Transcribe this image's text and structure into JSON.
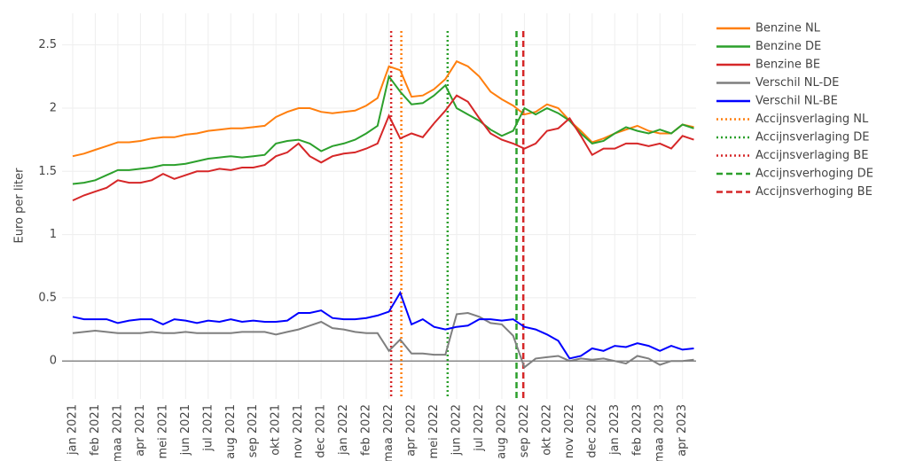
{
  "chart_data": {
    "type": "line",
    "y_label": "Euro per liter",
    "x": [
      0,
      0.5,
      1,
      1.5,
      2,
      2.5,
      3,
      3.5,
      4,
      4.5,
      5,
      5.5,
      6,
      6.5,
      7,
      7.5,
      8,
      8.5,
      9,
      9.5,
      10,
      10.5,
      11,
      11.5,
      12,
      12.5,
      13,
      13.5,
      14,
      14.5,
      15,
      15.5,
      16,
      16.5,
      17,
      17.5,
      18,
      18.5,
      19,
      19.5,
      20,
      20.5,
      21,
      21.5,
      22,
      22.5,
      23,
      23.5,
      24,
      24.5,
      25,
      25.5,
      26,
      26.5,
      27,
      27.5
    ],
    "xlim": [
      -0.47,
      27.6
    ],
    "xticks": [
      {
        "value": 0,
        "label": "jan 2021"
      },
      {
        "value": 1,
        "label": "feb 2021"
      },
      {
        "value": 2,
        "label": "maa 2021"
      },
      {
        "value": 3,
        "label": "apr 2021"
      },
      {
        "value": 4,
        "label": "mei 2021"
      },
      {
        "value": 5,
        "label": "jun 2021"
      },
      {
        "value": 6,
        "label": "jul 2021"
      },
      {
        "value": 7,
        "label": "aug 2021"
      },
      {
        "value": 8,
        "label": "sep 2021"
      },
      {
        "value": 9,
        "label": "okt 2021"
      },
      {
        "value": 10,
        "label": "nov 2021"
      },
      {
        "value": 11,
        "label": "dec 2021"
      },
      {
        "value": 12,
        "label": "jan 2022"
      },
      {
        "value": 13,
        "label": "feb 2022"
      },
      {
        "value": 14,
        "label": "maa 2022"
      },
      {
        "value": 15,
        "label": "apr 2022"
      },
      {
        "value": 16,
        "label": "mei 2022"
      },
      {
        "value": 17,
        "label": "jun 2022"
      },
      {
        "value": 18,
        "label": "jul 2022"
      },
      {
        "value": 19,
        "label": "aug 2022"
      },
      {
        "value": 20,
        "label": "sep 2022"
      },
      {
        "value": 21,
        "label": "okt 2022"
      },
      {
        "value": 22,
        "label": "nov 2022"
      },
      {
        "value": 23,
        "label": "dec 2022"
      },
      {
        "value": 24,
        "label": "jan 2023"
      },
      {
        "value": 25,
        "label": "feb 2023"
      },
      {
        "value": 26,
        "label": "maa 2023"
      },
      {
        "value": 27,
        "label": "apr 2023"
      }
    ],
    "ylim": [
      -0.3,
      2.75
    ],
    "yticks": [
      0,
      0.5,
      1,
      1.5,
      2,
      2.5
    ],
    "grid": true,
    "zeroline": true,
    "legend": "right",
    "series": [
      {
        "name": "Benzine NL",
        "color": "#ff7f0e",
        "values": [
          1.62,
          1.64,
          1.67,
          1.7,
          1.73,
          1.73,
          1.74,
          1.76,
          1.77,
          1.77,
          1.79,
          1.8,
          1.82,
          1.83,
          1.84,
          1.84,
          1.85,
          1.86,
          1.93,
          1.97,
          2.0,
          2.0,
          1.97,
          1.96,
          1.97,
          1.98,
          2.02,
          2.08,
          2.33,
          2.3,
          2.09,
          2.1,
          2.15,
          2.23,
          2.37,
          2.33,
          2.25,
          2.13,
          2.07,
          2.02,
          1.95,
          1.97,
          2.03,
          2.0,
          1.9,
          1.82,
          1.73,
          1.76,
          1.8,
          1.83,
          1.86,
          1.82,
          1.8,
          1.8,
          1.87,
          1.85
        ]
      },
      {
        "name": "Benzine DE",
        "color": "#2ca02c",
        "values": [
          1.4,
          1.41,
          1.43,
          1.47,
          1.51,
          1.51,
          1.52,
          1.53,
          1.55,
          1.55,
          1.56,
          1.58,
          1.6,
          1.61,
          1.62,
          1.61,
          1.62,
          1.63,
          1.72,
          1.74,
          1.75,
          1.72,
          1.66,
          1.7,
          1.72,
          1.75,
          1.8,
          1.86,
          2.25,
          2.13,
          2.03,
          2.04,
          2.1,
          2.18,
          2.0,
          1.95,
          1.9,
          1.83,
          1.78,
          1.82,
          2.0,
          1.95,
          2.0,
          1.96,
          1.9,
          1.8,
          1.72,
          1.74,
          1.8,
          1.85,
          1.82,
          1.8,
          1.83,
          1.8,
          1.87,
          1.84
        ]
      },
      {
        "name": "Benzine BE",
        "color": "#d62728",
        "values": [
          1.27,
          1.31,
          1.34,
          1.37,
          1.43,
          1.41,
          1.41,
          1.43,
          1.48,
          1.44,
          1.47,
          1.5,
          1.5,
          1.52,
          1.51,
          1.53,
          1.53,
          1.55,
          1.62,
          1.65,
          1.72,
          1.62,
          1.57,
          1.62,
          1.64,
          1.65,
          1.68,
          1.72,
          1.94,
          1.76,
          1.8,
          1.77,
          1.88,
          1.98,
          2.1,
          2.05,
          1.92,
          1.8,
          1.75,
          1.72,
          1.68,
          1.72,
          1.82,
          1.84,
          1.92,
          1.78,
          1.63,
          1.68,
          1.68,
          1.72,
          1.72,
          1.7,
          1.72,
          1.68,
          1.78,
          1.75
        ]
      },
      {
        "name": "Verschil NL-DE",
        "color": "#7f7f7f",
        "values": [
          0.22,
          0.23,
          0.24,
          0.23,
          0.22,
          0.22,
          0.22,
          0.23,
          0.22,
          0.22,
          0.23,
          0.22,
          0.22,
          0.22,
          0.22,
          0.23,
          0.23,
          0.23,
          0.21,
          0.23,
          0.25,
          0.28,
          0.31,
          0.26,
          0.25,
          0.23,
          0.22,
          0.22,
          0.08,
          0.17,
          0.06,
          0.06,
          0.05,
          0.05,
          0.37,
          0.38,
          0.35,
          0.3,
          0.29,
          0.2,
          -0.05,
          0.02,
          0.03,
          0.04,
          0.0,
          0.02,
          0.01,
          0.02,
          0.0,
          -0.02,
          0.04,
          0.02,
          -0.03,
          0.0,
          0.0,
          0.01
        ]
      },
      {
        "name": "Verschil NL-BE",
        "color": "#0000ff",
        "values": [
          0.35,
          0.33,
          0.33,
          0.33,
          0.3,
          0.32,
          0.33,
          0.33,
          0.29,
          0.33,
          0.32,
          0.3,
          0.32,
          0.31,
          0.33,
          0.31,
          0.32,
          0.31,
          0.31,
          0.32,
          0.38,
          0.38,
          0.4,
          0.34,
          0.33,
          0.33,
          0.34,
          0.36,
          0.39,
          0.54,
          0.29,
          0.33,
          0.27,
          0.25,
          0.27,
          0.28,
          0.33,
          0.33,
          0.32,
          0.33,
          0.27,
          0.25,
          0.21,
          0.16,
          0.02,
          0.04,
          0.1,
          0.08,
          0.12,
          0.11,
          0.14,
          0.12,
          0.08,
          0.12,
          0.09,
          0.1
        ]
      }
    ],
    "markers": [
      {
        "name": "Accijnsverlaging NL",
        "color": "#ff7f0e",
        "dash": "dot",
        "x": 14.55
      },
      {
        "name": "Accijnsverlaging DE",
        "color": "#2ca02c",
        "dash": "dot",
        "x": 16.6
      },
      {
        "name": "Accijnsverlaging BE",
        "color": "#d62728",
        "dash": "dot",
        "x": 14.1
      },
      {
        "name": "Accijnsverhoging DE",
        "color": "#2ca02c",
        "dash": "dash",
        "x": 19.65
      },
      {
        "name": "Accijnsverhoging BE",
        "color": "#d62728",
        "dash": "dash",
        "x": 19.95
      }
    ]
  }
}
